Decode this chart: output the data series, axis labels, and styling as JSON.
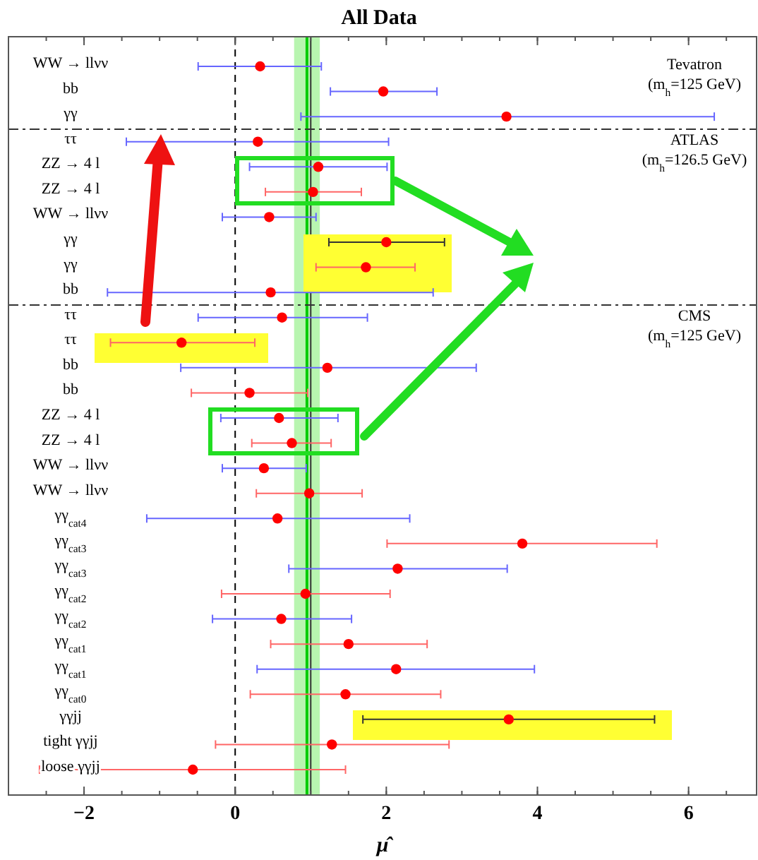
{
  "chart_data": {
    "type": "scatter",
    "orientation": "horizontal",
    "title": "All Data",
    "xlabel": "μ̂",
    "categories": [
      "WW → llνν",
      "bb",
      "γγ",
      "ττ",
      "ZZ → 4 l",
      "ZZ → 4 l",
      "WW → llνν",
      "γγ",
      "γγ",
      "bb",
      "ττ",
      "ττ",
      "bb",
      "bb",
      "ZZ → 4 l",
      "ZZ → 4 l",
      "WW → llνν",
      "WW → llνν",
      "γγ$_{cat4}$",
      "γγ$_{cat3}$",
      "γγ$_{cat3}$",
      "γγ$_{cat2}$",
      "γγ$_{cat2}$",
      "γγ$_{cat1}$",
      "γγ$_{cat1}$",
      "γγ$_{cat0}$",
      "γγjj",
      "tight γγjj",
      "loose γγjj"
    ],
    "values": [
      0.33,
      1.96,
      3.59,
      0.3,
      1.1,
      1.03,
      0.45,
      2.0,
      1.73,
      0.47,
      0.62,
      -0.71,
      1.22,
      0.19,
      0.58,
      0.75,
      0.38,
      0.98,
      0.56,
      3.8,
      2.15,
      0.93,
      0.61,
      1.5,
      2.13,
      1.46,
      3.62,
      1.28,
      -0.56
    ],
    "errors": [
      [
        -0.49,
        1.14
      ],
      [
        1.26,
        2.67
      ],
      [
        0.87,
        6.34
      ],
      [
        -1.44,
        2.03
      ],
      [
        0.19,
        2.01
      ],
      [
        0.4,
        1.67
      ],
      [
        -0.17,
        1.07
      ],
      [
        1.24,
        2.77
      ],
      [
        1.07,
        2.38
      ],
      [
        -1.69,
        2.62
      ],
      [
        -0.49,
        1.75
      ],
      [
        -1.65,
        0.26
      ],
      [
        -0.72,
        3.19
      ],
      [
        -0.58,
        0.96
      ],
      [
        -0.19,
        1.36
      ],
      [
        0.22,
        1.27
      ],
      [
        -0.17,
        0.94
      ],
      [
        0.28,
        1.68
      ],
      [
        -1.17,
        2.31
      ],
      [
        2.01,
        5.58
      ],
      [
        0.71,
        3.6
      ],
      [
        -0.18,
        2.05
      ],
      [
        -0.3,
        1.54
      ],
      [
        0.47,
        2.54
      ],
      [
        0.29,
        3.96
      ],
      [
        0.2,
        2.72
      ],
      [
        1.69,
        5.55
      ],
      [
        -0.26,
        2.83
      ],
      [
        -2.59,
        1.46
      ]
    ],
    "color": "#ff0000",
    "marker": "circle",
    "xlim": [
      -3,
      6.9
    ],
    "xticks": [
      {
        "value": -2,
        "label": "−2"
      },
      0,
      2,
      4,
      6
    ],
    "ref_lines": [
      {
        "axis": "x",
        "value": 0,
        "line_style": "dashed",
        "color": "#000000"
      },
      {
        "axis": "x",
        "value": 0.95,
        "color": "#00cc00"
      },
      {
        "axis": "x",
        "value": 1,
        "color": "#333333"
      }
    ],
    "bands": [
      {
        "axis": "x",
        "from": 0.78,
        "to": 1.12,
        "color": "#b8f5b0"
      }
    ],
    "annotations": [
      "Tevatron",
      "(m$_{h}$=125 GeV)",
      "ATLAS",
      "(m$_{h}$=126.5 GeV)",
      "CMS",
      "(m$_{h}$=125 GeV)"
    ]
  }
}
